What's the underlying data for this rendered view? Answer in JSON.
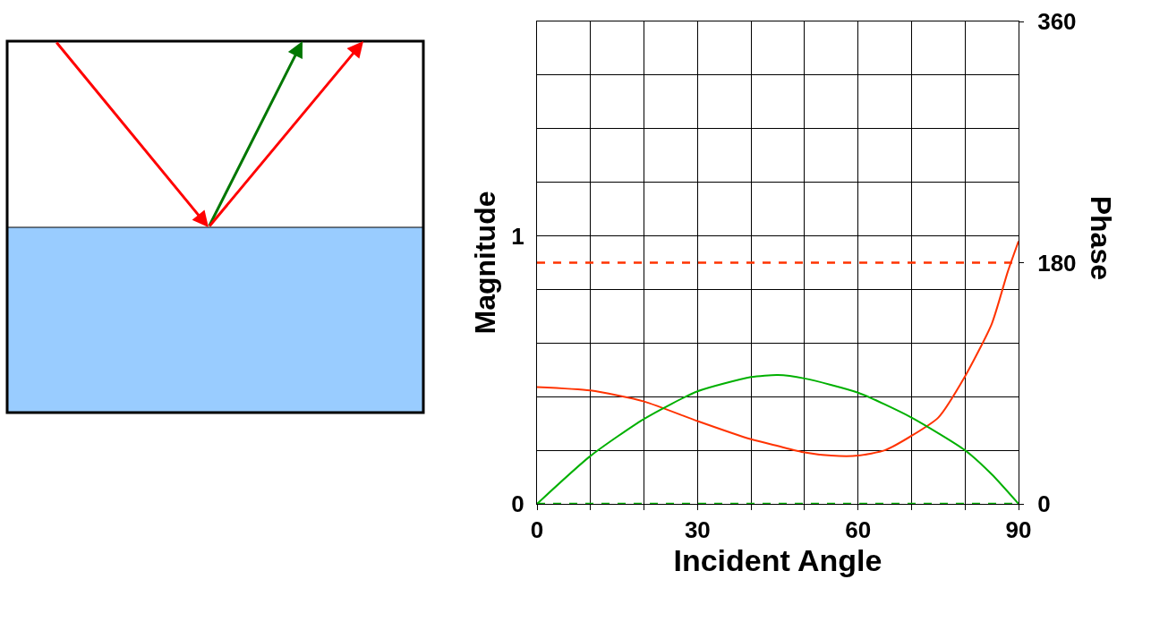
{
  "chart_data": {
    "type": "line",
    "xlabel": "Incident Angle",
    "ylabel": "Magnitude",
    "y2label": "Phase",
    "x": [
      0,
      10,
      20,
      30,
      40,
      45,
      50,
      55,
      60,
      65,
      70,
      75,
      80,
      85,
      88,
      90
    ],
    "series": [
      {
        "color": "#ff3300",
        "line_style": "solid",
        "values": [
          0.436,
          0.423,
          0.382,
          0.309,
          0.241,
          0.216,
          0.192,
          0.18,
          0.18,
          0.2,
          0.254,
          0.322,
          0.476,
          0.672,
          0.867,
          0.98
        ]
      },
      {
        "color": "#00b000",
        "line_style": "solid",
        "x": [
          0,
          10,
          20,
          30,
          40,
          45,
          50,
          60,
          70,
          80,
          85,
          90
        ],
        "values": [
          0,
          0.179,
          0.317,
          0.42,
          0.473,
          0.481,
          0.468,
          0.415,
          0.322,
          0.2,
          0.11,
          0
        ]
      },
      {
        "color": "#ff3300",
        "line_style": "dashed",
        "axis": "y2",
        "x": [
          0,
          90
        ],
        "values": [
          180,
          180
        ]
      },
      {
        "color": "#00b000",
        "line_style": "dashed",
        "axis": "y2",
        "x": [
          0,
          90
        ],
        "values": [
          0,
          0
        ]
      }
    ],
    "xlim": [
      0,
      90
    ],
    "xticks": [
      0,
      {
        "value": 10,
        "label": null
      },
      {
        "value": 20,
        "label": null
      },
      30,
      {
        "value": 40,
        "label": null
      },
      {
        "value": 50,
        "label": null
      },
      60,
      {
        "value": 70,
        "label": null
      },
      {
        "value": 80,
        "label": null
      },
      90
    ],
    "ylim": [
      0,
      1.8
    ],
    "yticks": [
      0,
      {
        "value": 0.2,
        "label": null
      },
      {
        "value": 0.4,
        "label": null
      },
      {
        "value": 0.6,
        "label": null
      },
      {
        "value": 0.8,
        "label": null
      },
      1,
      {
        "value": 1.2,
        "label": null
      },
      {
        "value": 1.4,
        "label": null
      },
      {
        "value": 1.6,
        "label": null
      },
      {
        "value": 1.8,
        "label": null
      }
    ],
    "y2lim": [
      0,
      360
    ],
    "y2ticks": [
      0,
      180,
      360
    ],
    "grid": true,
    "marker": "none"
  }
}
